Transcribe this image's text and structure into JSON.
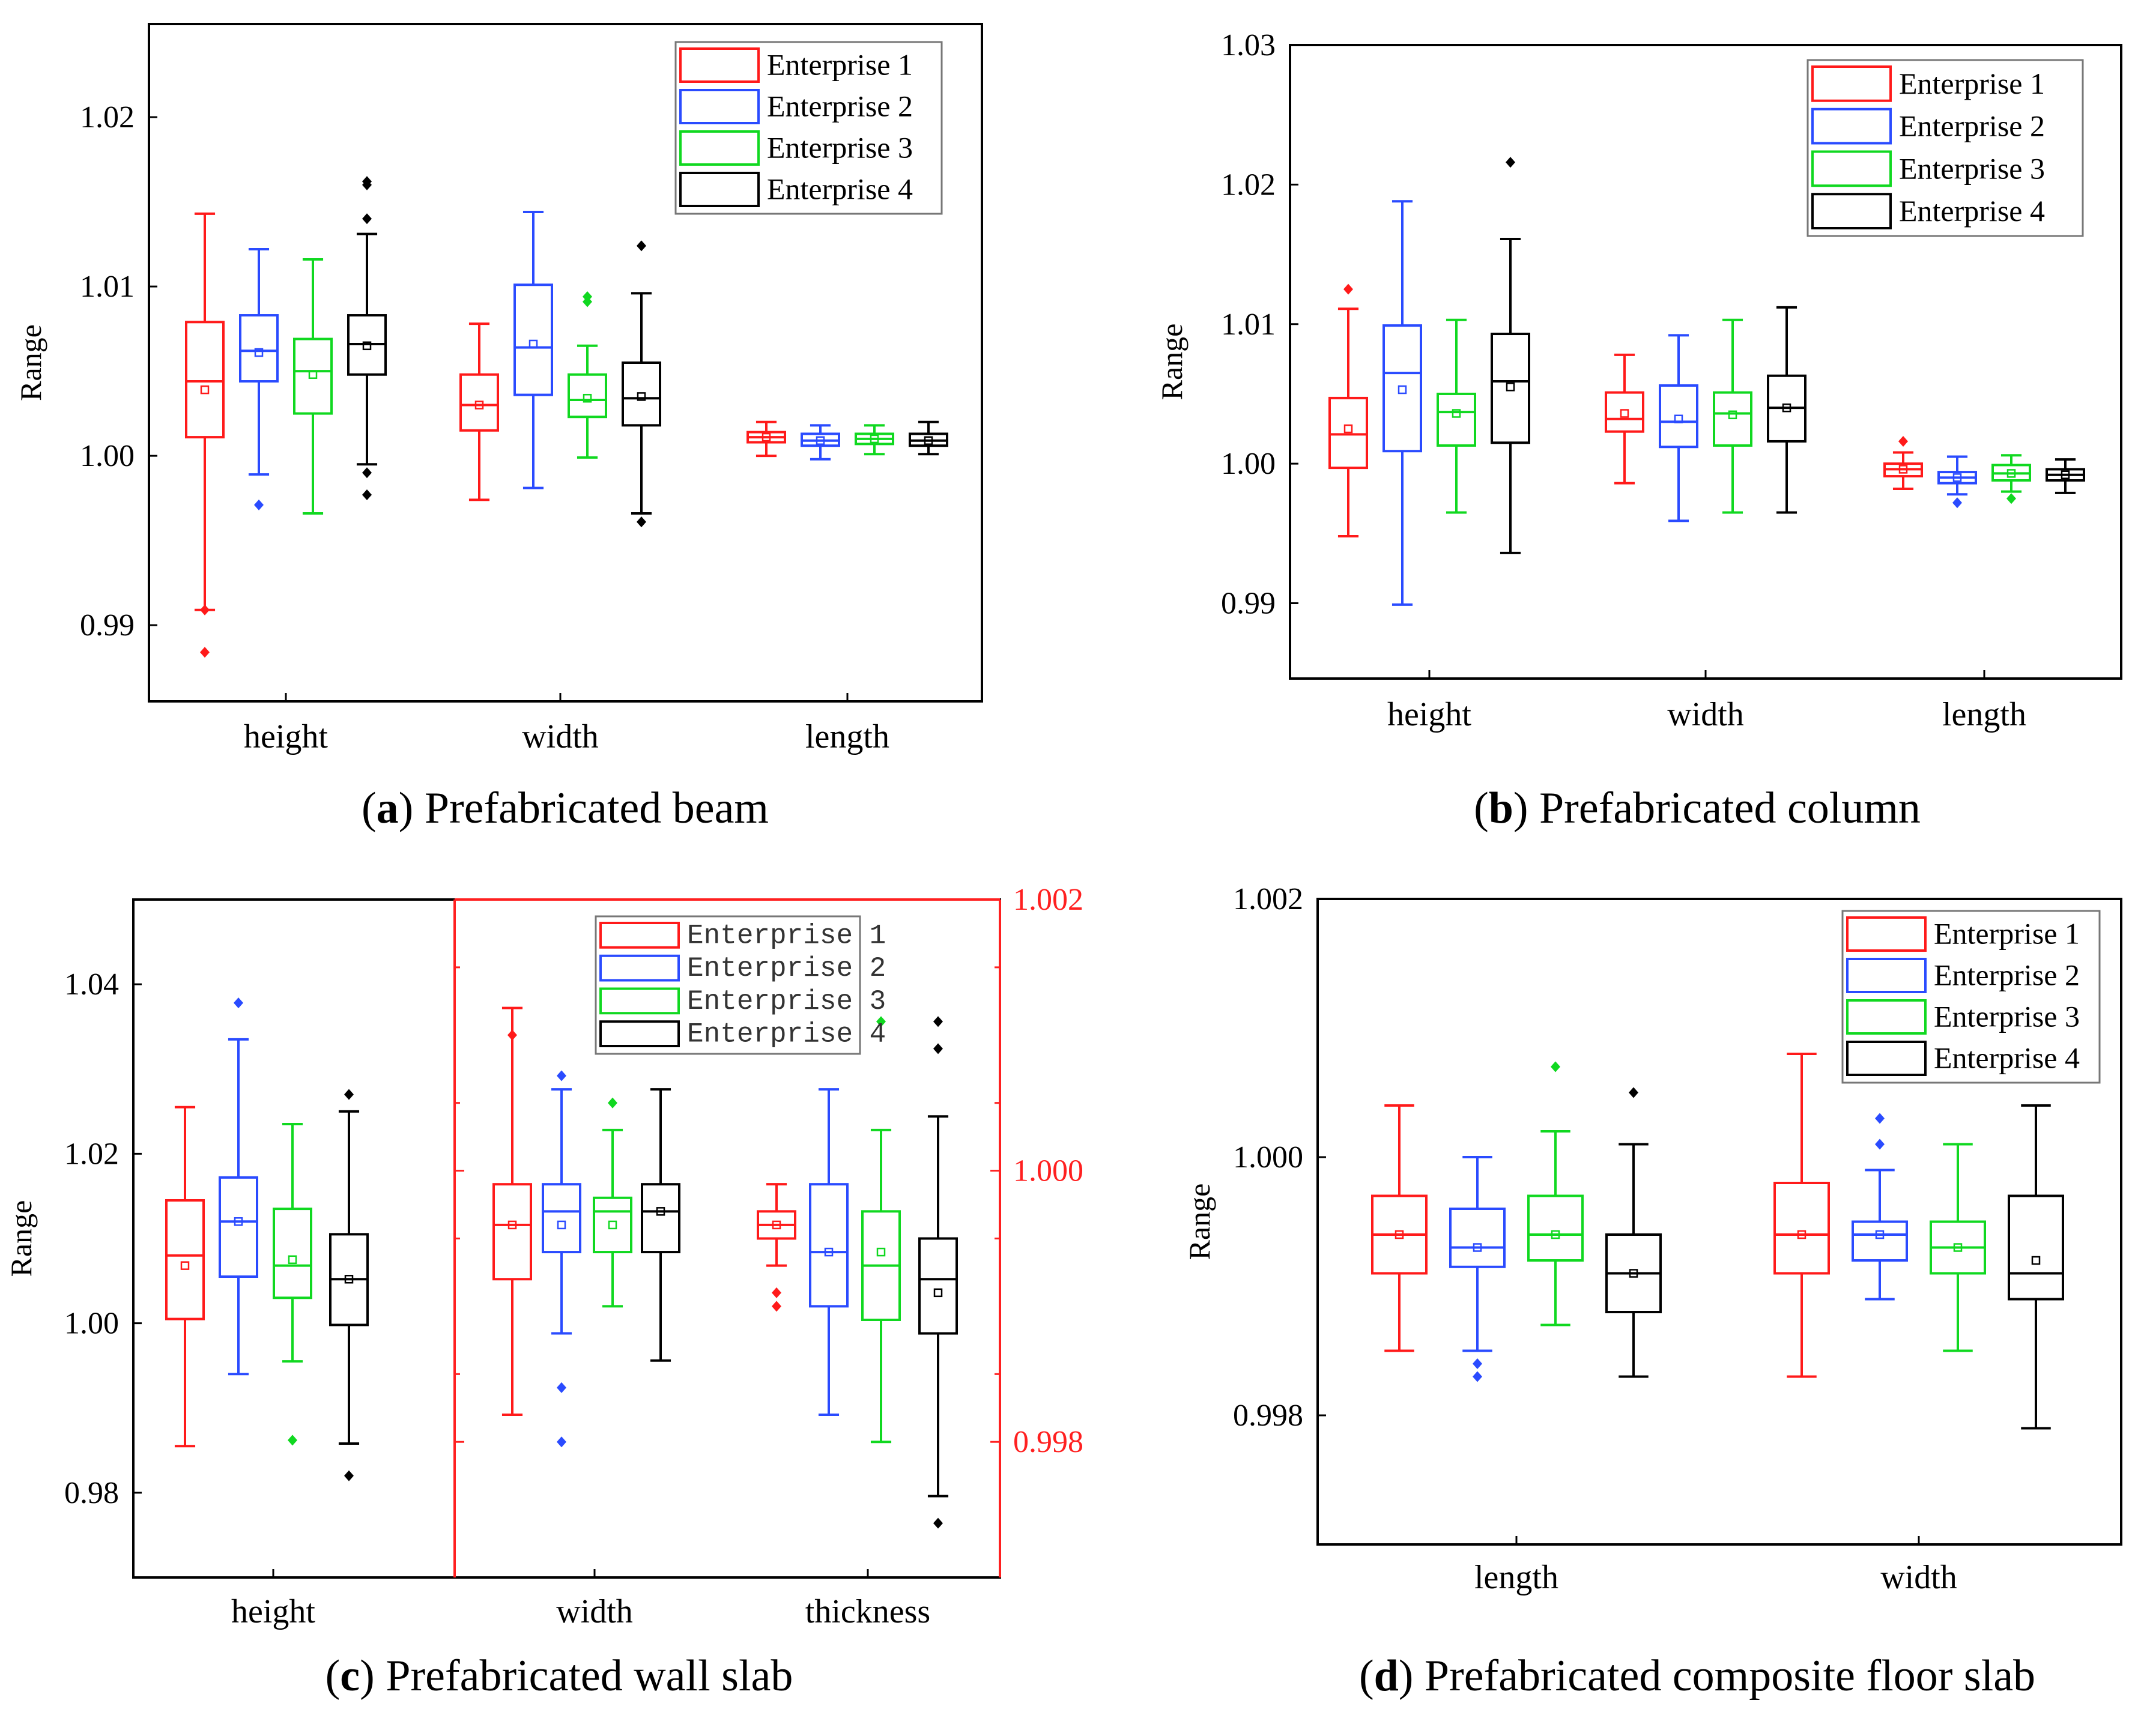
{
  "series_colors": {
    "Enterprise 1": "#ff1a1a",
    "Enterprise 2": "#2a4bff",
    "Enterprise 3": "#10d820",
    "Enterprise 4": "#000000"
  },
  "chart_data": [
    {
      "id": "a",
      "type": "box",
      "caption_letter": "a",
      "caption": "Prefabricated beam",
      "ylabel": "Range",
      "ylim": [
        0.9855,
        1.0255
      ],
      "yticks": [
        "0.99",
        "1.00",
        "1.01",
        "1.02"
      ],
      "ytick_values": [
        0.99,
        1.0,
        1.01,
        1.02
      ],
      "categories": [
        "height",
        "width",
        "length"
      ],
      "legend": [
        "Enterprise 1",
        "Enterprise 2",
        "Enterprise 3",
        "Enterprise 4"
      ],
      "legend_position": "top-right",
      "boxes": [
        {
          "category": "height",
          "series": "Enterprise 1",
          "min": 0.9909,
          "q1": 1.0011,
          "median": 1.0044,
          "q3": 1.0079,
          "max": 1.0143,
          "mean": 1.0039,
          "outliers": [
            0.9884,
            0.9909
          ]
        },
        {
          "category": "height",
          "series": "Enterprise 2",
          "min": 0.9989,
          "q1": 1.0044,
          "median": 1.0062,
          "q3": 1.0083,
          "max": 1.0122,
          "mean": 1.0061,
          "outliers": [
            0.9971
          ]
        },
        {
          "category": "height",
          "series": "Enterprise 3",
          "min": 0.9966,
          "q1": 1.0025,
          "median": 1.005,
          "q3": 1.0069,
          "max": 1.0116,
          "mean": 1.0048,
          "outliers": []
        },
        {
          "category": "height",
          "series": "Enterprise 4",
          "min": 0.9995,
          "q1": 1.0048,
          "median": 1.0066,
          "q3": 1.0083,
          "max": 1.0131,
          "mean": 1.0065,
          "outliers": [
            1.0162,
            1.016,
            1.014,
            0.999,
            0.9977
          ]
        },
        {
          "category": "width",
          "series": "Enterprise 1",
          "min": 0.9974,
          "q1": 1.0015,
          "median": 1.003,
          "q3": 1.0048,
          "max": 1.0078,
          "mean": 1.003,
          "outliers": []
        },
        {
          "category": "width",
          "series": "Enterprise 2",
          "min": 0.9981,
          "q1": 1.0036,
          "median": 1.0064,
          "q3": 1.0101,
          "max": 1.0144,
          "mean": 1.0066,
          "outliers": []
        },
        {
          "category": "width",
          "series": "Enterprise 3",
          "min": 0.9999,
          "q1": 1.0023,
          "median": 1.0033,
          "q3": 1.0048,
          "max": 1.0065,
          "mean": 1.0034,
          "outliers": [
            1.0094,
            1.0091
          ]
        },
        {
          "category": "width",
          "series": "Enterprise 4",
          "min": 0.9966,
          "q1": 1.0018,
          "median": 1.0034,
          "q3": 1.0055,
          "max": 1.0096,
          "mean": 1.0035,
          "outliers": [
            1.0124,
            0.9961
          ]
        },
        {
          "category": "length",
          "series": "Enterprise 1",
          "min": 1.0,
          "q1": 1.0008,
          "median": 1.0011,
          "q3": 1.0014,
          "max": 1.002,
          "mean": 1.0011,
          "outliers": []
        },
        {
          "category": "length",
          "series": "Enterprise 2",
          "min": 0.9998,
          "q1": 1.0006,
          "median": 1.0009,
          "q3": 1.0013,
          "max": 1.0018,
          "mean": 1.0009,
          "outliers": []
        },
        {
          "category": "length",
          "series": "Enterprise 3",
          "min": 1.0001,
          "q1": 1.0007,
          "median": 1.001,
          "q3": 1.0013,
          "max": 1.0018,
          "mean": 1.001,
          "outliers": []
        },
        {
          "category": "length",
          "series": "Enterprise 4",
          "min": 1.0001,
          "q1": 1.0006,
          "median": 1.0009,
          "q3": 1.0013,
          "max": 1.002,
          "mean": 1.0009,
          "outliers": []
        }
      ]
    },
    {
      "id": "b",
      "type": "box",
      "caption_letter": "b",
      "caption": "Prefabricated column",
      "ylabel": "Range",
      "ylim": [
        0.9846,
        1.03
      ],
      "yticks": [
        "0.99",
        "1.00",
        "1.01",
        "1.02",
        "1.03"
      ],
      "ytick_values": [
        0.99,
        1.0,
        1.01,
        1.02,
        1.03
      ],
      "categories": [
        "height",
        "width",
        "length"
      ],
      "legend": [
        "Enterprise 1",
        "Enterprise 2",
        "Enterprise 3",
        "Enterprise 4"
      ],
      "legend_position": "top-right",
      "boxes": [
        {
          "category": "height",
          "series": "Enterprise 1",
          "min": 0.9948,
          "q1": 0.9997,
          "median": 1.0021,
          "q3": 1.0047,
          "max": 1.0111,
          "mean": 1.0025,
          "outliers": [
            1.0125
          ]
        },
        {
          "category": "height",
          "series": "Enterprise 2",
          "min": 0.9899,
          "q1": 1.0009,
          "median": 1.0065,
          "q3": 1.0099,
          "max": 1.0188,
          "mean": 1.0053,
          "outliers": []
        },
        {
          "category": "height",
          "series": "Enterprise 3",
          "min": 0.9965,
          "q1": 1.0013,
          "median": 1.0037,
          "q3": 1.005,
          "max": 1.0103,
          "mean": 1.0036,
          "outliers": []
        },
        {
          "category": "height",
          "series": "Enterprise 4",
          "min": 0.9936,
          "q1": 1.0015,
          "median": 1.0059,
          "q3": 1.0093,
          "max": 1.0161,
          "mean": 1.0055,
          "outliers": [
            1.0216
          ]
        },
        {
          "category": "width",
          "series": "Enterprise 1",
          "min": 0.9986,
          "q1": 1.0023,
          "median": 1.0032,
          "q3": 1.0051,
          "max": 1.0078,
          "mean": 1.0036,
          "outliers": []
        },
        {
          "category": "width",
          "series": "Enterprise 2",
          "min": 0.9959,
          "q1": 1.0012,
          "median": 1.003,
          "q3": 1.0056,
          "max": 1.0092,
          "mean": 1.0032,
          "outliers": []
        },
        {
          "category": "width",
          "series": "Enterprise 3",
          "min": 0.9965,
          "q1": 1.0013,
          "median": 1.0036,
          "q3": 1.0051,
          "max": 1.0103,
          "mean": 1.0035,
          "outliers": []
        },
        {
          "category": "width",
          "series": "Enterprise 4",
          "min": 0.9965,
          "q1": 1.0016,
          "median": 1.004,
          "q3": 1.0063,
          "max": 1.0112,
          "mean": 1.004,
          "outliers": []
        },
        {
          "category": "length",
          "series": "Enterprise 1",
          "min": 0.9982,
          "q1": 0.9991,
          "median": 0.9996,
          "q3": 1.0,
          "max": 1.0008,
          "mean": 0.9996,
          "outliers": [
            1.0016
          ]
        },
        {
          "category": "length",
          "series": "Enterprise 2",
          "min": 0.9978,
          "q1": 0.9986,
          "median": 0.999,
          "q3": 0.9994,
          "max": 1.0005,
          "mean": 0.999,
          "outliers": [
            0.9972
          ]
        },
        {
          "category": "length",
          "series": "Enterprise 3",
          "min": 0.998,
          "q1": 0.9988,
          "median": 0.9993,
          "q3": 0.9999,
          "max": 1.0006,
          "mean": 0.9993,
          "outliers": [
            0.9975
          ]
        },
        {
          "category": "length",
          "series": "Enterprise 4",
          "min": 0.9979,
          "q1": 0.9988,
          "median": 0.9992,
          "q3": 0.9996,
          "max": 1.0003,
          "mean": 0.9992,
          "outliers": []
        }
      ]
    },
    {
      "id": "c",
      "type": "box",
      "caption_letter": "c",
      "caption": "Prefabricated wall slab",
      "ylabel": "Range",
      "ylim": [
        0.97,
        1.05
      ],
      "yticks": [
        "0.98",
        "1.00",
        "1.02",
        "1.04"
      ],
      "ytick_values": [
        0.98,
        1.0,
        1.02,
        1.04
      ],
      "y2lim": [
        0.997,
        1.002
      ],
      "y2ticks": [
        "0.998",
        "1.000",
        "1.002"
      ],
      "y2tick_values": [
        0.998,
        1.0,
        1.002
      ],
      "y2color": "#ff2020",
      "categories": [
        "height",
        "width",
        "thickness"
      ],
      "category_axes": [
        "left",
        "right",
        "right"
      ],
      "legend": [
        "Enterprise 1",
        "Enterprise 2",
        "Enterprise 3",
        "Enterprise 4"
      ],
      "legend_position": "top-right",
      "boxes": [
        {
          "category": "height",
          "series": "Enterprise 1",
          "min": 0.9855,
          "q1": 1.0005,
          "median": 1.008,
          "q3": 1.0145,
          "max": 1.0255,
          "mean": 1.0068,
          "outliers": []
        },
        {
          "category": "height",
          "series": "Enterprise 2",
          "min": 0.994,
          "q1": 1.0055,
          "median": 1.012,
          "q3": 1.0172,
          "max": 1.0335,
          "mean": 1.012,
          "outliers": [
            1.0378
          ]
        },
        {
          "category": "height",
          "series": "Enterprise 3",
          "min": 0.9955,
          "q1": 1.003,
          "median": 1.0068,
          "q3": 1.0135,
          "max": 1.0235,
          "mean": 1.0075,
          "outliers": [
            0.9862
          ]
        },
        {
          "category": "height",
          "series": "Enterprise 4",
          "min": 0.9858,
          "q1": 0.9998,
          "median": 1.0052,
          "q3": 1.0105,
          "max": 1.025,
          "mean": 1.0052,
          "outliers": [
            1.027,
            0.982
          ]
        },
        {
          "category": "width",
          "series": "Enterprise 1",
          "min": 0.9982,
          "q1": 0.9992,
          "median": 0.9996,
          "q3": 0.9999,
          "max": 1.0012,
          "mean": 0.9996,
          "outliers": [
            1.001
          ]
        },
        {
          "category": "width",
          "series": "Enterprise 2",
          "min": 0.9988,
          "q1": 0.9994,
          "median": 0.9997,
          "q3": 0.9999,
          "max": 1.0006,
          "mean": 0.9996,
          "outliers": [
            1.0007,
            0.9984,
            0.998
          ]
        },
        {
          "category": "width",
          "series": "Enterprise 3",
          "min": 0.999,
          "q1": 0.9994,
          "median": 0.9997,
          "q3": 0.9998,
          "max": 1.0003,
          "mean": 0.9996,
          "outliers": [
            1.0005
          ]
        },
        {
          "category": "width",
          "series": "Enterprise 4",
          "min": 0.9986,
          "q1": 0.9994,
          "median": 0.9997,
          "q3": 0.9999,
          "max": 1.0006,
          "mean": 0.9997,
          "outliers": []
        },
        {
          "category": "thickness",
          "series": "Enterprise 1",
          "min": 0.9993,
          "q1": 0.9995,
          "median": 0.9996,
          "q3": 0.9997,
          "max": 0.9999,
          "mean": 0.9996,
          "outliers": [
            0.9991,
            0.999
          ]
        },
        {
          "category": "thickness",
          "series": "Enterprise 2",
          "min": 0.9982,
          "q1": 0.999,
          "median": 0.9994,
          "q3": 0.9999,
          "max": 1.0006,
          "mean": 0.9994,
          "outliers": []
        },
        {
          "category": "thickness",
          "series": "Enterprise 3",
          "min": 0.998,
          "q1": 0.9989,
          "median": 0.9993,
          "q3": 0.9997,
          "max": 1.0003,
          "mean": 0.9994,
          "outliers": [
            1.0011
          ]
        },
        {
          "category": "thickness",
          "series": "Enterprise 4",
          "min": 0.9976,
          "q1": 0.9988,
          "median": 0.9992,
          "q3": 0.9995,
          "max": 1.0004,
          "mean": 0.9991,
          "outliers": [
            1.0011,
            1.0009,
            0.9974
          ]
        }
      ]
    },
    {
      "id": "d",
      "type": "box",
      "caption_letter": "d",
      "caption": "Prefabricated composite floor slab",
      "ylabel": "Range",
      "ylim": [
        0.997,
        1.002
      ],
      "yticks": [
        "0.998",
        "1.000",
        "1.002"
      ],
      "ytick_values": [
        0.998,
        1.0,
        1.002
      ],
      "categories": [
        "length",
        "width"
      ],
      "legend": [
        "Enterprise 1",
        "Enterprise 2",
        "Enterprise 3",
        "Enterprise 4"
      ],
      "legend_position": "top-right",
      "boxes": [
        {
          "category": "length",
          "series": "Enterprise 1",
          "min": 0.9985,
          "q1": 0.9991,
          "median": 0.9994,
          "q3": 0.9997,
          "max": 1.0004,
          "mean": 0.9994,
          "outliers": []
        },
        {
          "category": "length",
          "series": "Enterprise 2",
          "min": 0.9985,
          "q1": 0.99915,
          "median": 0.9993,
          "q3": 0.9996,
          "max": 1.0,
          "mean": 0.9993,
          "outliers": [
            0.9984,
            0.9983
          ]
        },
        {
          "category": "length",
          "series": "Enterprise 3",
          "min": 0.9987,
          "q1": 0.9992,
          "median": 0.9994,
          "q3": 0.9997,
          "max": 1.0002,
          "mean": 0.9994,
          "outliers": [
            1.0007
          ]
        },
        {
          "category": "length",
          "series": "Enterprise 4",
          "min": 0.9983,
          "q1": 0.9988,
          "median": 0.9991,
          "q3": 0.9994,
          "max": 1.0001,
          "mean": 0.9991,
          "outliers": [
            1.0005
          ]
        },
        {
          "category": "width",
          "series": "Enterprise 1",
          "min": 0.9983,
          "q1": 0.9991,
          "median": 0.9994,
          "q3": 0.9998,
          "max": 1.0008,
          "mean": 0.9994,
          "outliers": []
        },
        {
          "category": "width",
          "series": "Enterprise 2",
          "min": 0.9989,
          "q1": 0.9992,
          "median": 0.9994,
          "q3": 0.9995,
          "max": 0.9999,
          "mean": 0.9994,
          "outliers": [
            1.0003,
            1.0001
          ]
        },
        {
          "category": "width",
          "series": "Enterprise 3",
          "min": 0.9985,
          "q1": 0.9991,
          "median": 0.9993,
          "q3": 0.9995,
          "max": 1.0001,
          "mean": 0.9993,
          "outliers": []
        },
        {
          "category": "width",
          "series": "Enterprise 4",
          "min": 0.9979,
          "q1": 0.9989,
          "median": 0.9991,
          "q3": 0.9997,
          "max": 1.0004,
          "mean": 0.9992,
          "outliers": []
        }
      ]
    }
  ]
}
